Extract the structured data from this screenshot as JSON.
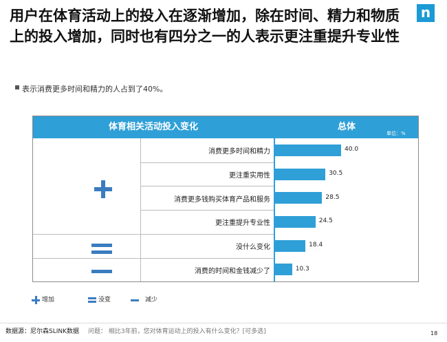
{
  "title": "用户在体育活动上的投入在逐渐增加，除在时间、精力和物质上的投入增加，同时也有四分之一的人表示更注重提升专业性",
  "subtitle": "表示消费更多时间和精力的人占到了40%。",
  "logo_text": "n",
  "table": {
    "left_header": "体育相关活动投入变化",
    "right_header": "总体",
    "unit": "单位：%"
  },
  "chart_data": {
    "type": "bar",
    "orientation": "horizontal",
    "categories": [
      "消费更多时间和精力",
      "更注重实用性",
      "消费更多钱购买体育产品和服务",
      "更注重提升专业性",
      "没什么变化",
      "消费的时间和金钱减少了"
    ],
    "values": [
      40.0,
      30.5,
      28.5,
      24.5,
      18.4,
      10.3
    ],
    "value_labels": [
      "40.0",
      "30.5",
      "28.5",
      "24.5",
      "18.4",
      "10.3"
    ],
    "groups": [
      {
        "name": "增加",
        "symbol": "plus",
        "rows": [
          0,
          1,
          2,
          3
        ]
      },
      {
        "name": "没变",
        "symbol": "equals",
        "rows": [
          4
        ]
      },
      {
        "name": "减少",
        "symbol": "minus",
        "rows": [
          5
        ]
      }
    ],
    "xlim": [
      0,
      100
    ],
    "bar_color": "#2f9fd7"
  },
  "legend": {
    "increase": "增加",
    "same": "没变",
    "decrease": "减少"
  },
  "footer": {
    "source": "数据源：尼尔森SLINK数据",
    "question": "问题：  相比3年前，您对体育运动上的投入有什么变化？[可多选]",
    "page": "18"
  }
}
